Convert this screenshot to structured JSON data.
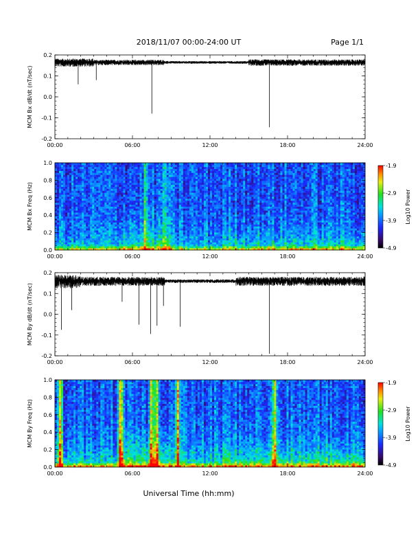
{
  "header": {
    "title": "2018/11/07  00:00-24:00 UT",
    "page": "Page 1/1"
  },
  "chart_data": [
    {
      "type": "line",
      "id": "bx-dbdt",
      "ylabel": "MCM Bx dB/dt (nT/sec)",
      "xlim": [
        0,
        24
      ],
      "ylim": [
        -0.2,
        0.2
      ],
      "baseline": 0.165,
      "x_tick_labels": [
        "00:00",
        "06:00",
        "12:00",
        "18:00",
        "24:00"
      ],
      "y_tick_labels": [
        "-0.2",
        "-0.1",
        "0.0",
        "0.1",
        "0.2"
      ],
      "spikes": [
        {
          "x": 1.8,
          "y": 0.06
        },
        {
          "x": 3.2,
          "y": 0.08
        },
        {
          "x": 7.5,
          "y": -0.08
        },
        {
          "x": 16.6,
          "y": -0.145
        }
      ]
    },
    {
      "type": "heatmap",
      "id": "bx-spectrogram",
      "ylabel": "MCM Bx Freq (Hz)",
      "xlim": [
        0,
        24
      ],
      "ylim": [
        0,
        1.0
      ],
      "x_tick_labels": [
        "00:00",
        "06:00",
        "12:00",
        "18:00",
        "24:00"
      ],
      "y_tick_labels": [
        "0.0",
        "0.2",
        "0.4",
        "0.6",
        "0.8",
        "1.0"
      ],
      "colorbar": {
        "label": "Log10 Power",
        "ticks": [
          "-1.9",
          "-2.9",
          "-3.9",
          "-4.9"
        ],
        "range": [
          -4.9,
          -1.9
        ]
      },
      "events": [
        7.0,
        8.5
      ]
    },
    {
      "type": "line",
      "id": "by-dbdt",
      "ylabel": "MCM By dB/dt (nT/sec)",
      "xlim": [
        0,
        24
      ],
      "ylim": [
        -0.2,
        0.2
      ],
      "baseline": 0.16,
      "x_tick_labels": [
        "00:00",
        "06:00",
        "12:00",
        "18:00",
        "24:00"
      ],
      "y_tick_labels": [
        "-0.2",
        "-0.1",
        "0.0",
        "0.1",
        "0.2"
      ],
      "spikes": [
        {
          "x": 0.5,
          "y": -0.075
        },
        {
          "x": 1.3,
          "y": 0.02
        },
        {
          "x": 5.2,
          "y": 0.06
        },
        {
          "x": 6.5,
          "y": -0.05
        },
        {
          "x": 7.4,
          "y": -0.095
        },
        {
          "x": 7.9,
          "y": -0.055
        },
        {
          "x": 8.4,
          "y": 0.04
        },
        {
          "x": 9.7,
          "y": -0.06
        },
        {
          "x": 16.6,
          "y": -0.19
        }
      ]
    },
    {
      "type": "heatmap",
      "id": "by-spectrogram",
      "ylabel": "MCM By Freq (Hz)",
      "xlim": [
        0,
        24
      ],
      "ylim": [
        0,
        1.0
      ],
      "x_tick_labels": [
        "00:00",
        "06:00",
        "12:00",
        "18:00",
        "24:00"
      ],
      "y_tick_labels": [
        "0.0",
        "0.2",
        "0.4",
        "0.6",
        "0.8",
        "1.0"
      ],
      "colorbar": {
        "label": "Log10 Power",
        "ticks": [
          "-1.9",
          "-2.9",
          "-3.9",
          "-4.9"
        ],
        "range": [
          -4.9,
          -1.9
        ]
      },
      "events": [
        0.4,
        5.1,
        7.5,
        7.9,
        9.5,
        17.0
      ]
    }
  ],
  "xaxis_title": "Universal Time (hh:mm)"
}
